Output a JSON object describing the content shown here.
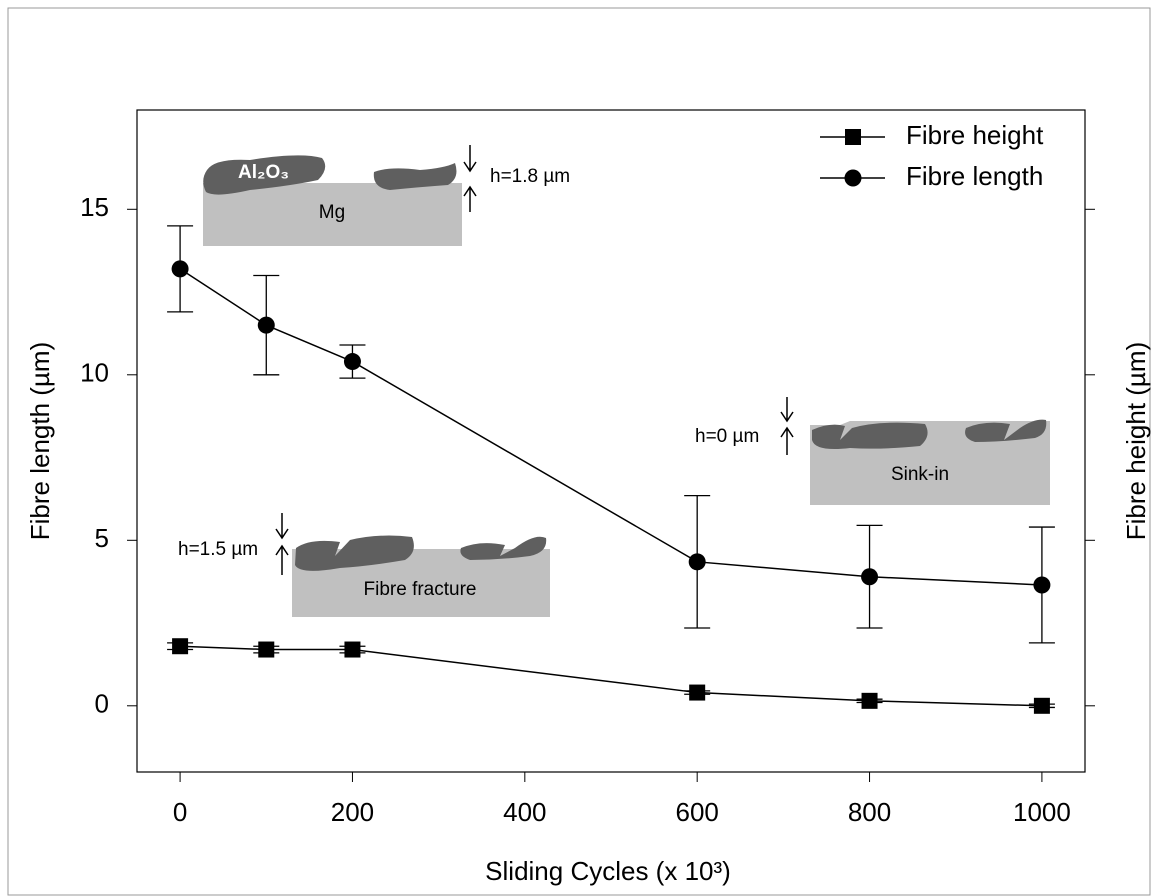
{
  "chart_data": {
    "type": "line",
    "x_label": "Sliding Cycles (x 10³)",
    "y_label": "Fibre length (µm)",
    "y2_label": "Fibre height (µm)",
    "x": [
      0,
      100,
      200,
      600,
      800,
      1000
    ],
    "xlim": [
      -50,
      1050
    ],
    "xticks": [
      0,
      200,
      400,
      600,
      800,
      1000
    ],
    "ylim": [
      -2,
      18
    ],
    "yticks": [
      0,
      5,
      10,
      15
    ],
    "legend": "upper right",
    "series": [
      {
        "name": "Fibre height",
        "marker": "square",
        "color": "#000000",
        "values": [
          1.8,
          1.7,
          1.7,
          0.4,
          0.15,
          0
        ],
        "errors": [
          0.1,
          0.1,
          0.1,
          0.05,
          0.05,
          0.05
        ]
      },
      {
        "name": "Fibre length",
        "marker": "circle",
        "color": "#000000",
        "values": [
          13.2,
          11.5,
          10.4,
          4.35,
          3.9,
          3.65
        ],
        "errors": [
          1.3,
          1.5,
          0.5,
          2.0,
          1.55,
          1.75
        ]
      }
    ],
    "annotations": [
      "Al₂O₃",
      "Mg",
      "h=1.8 µm",
      "h=0 µm",
      "Sink-in",
      "h=1.5 µm",
      "Fibre fracture"
    ]
  }
}
